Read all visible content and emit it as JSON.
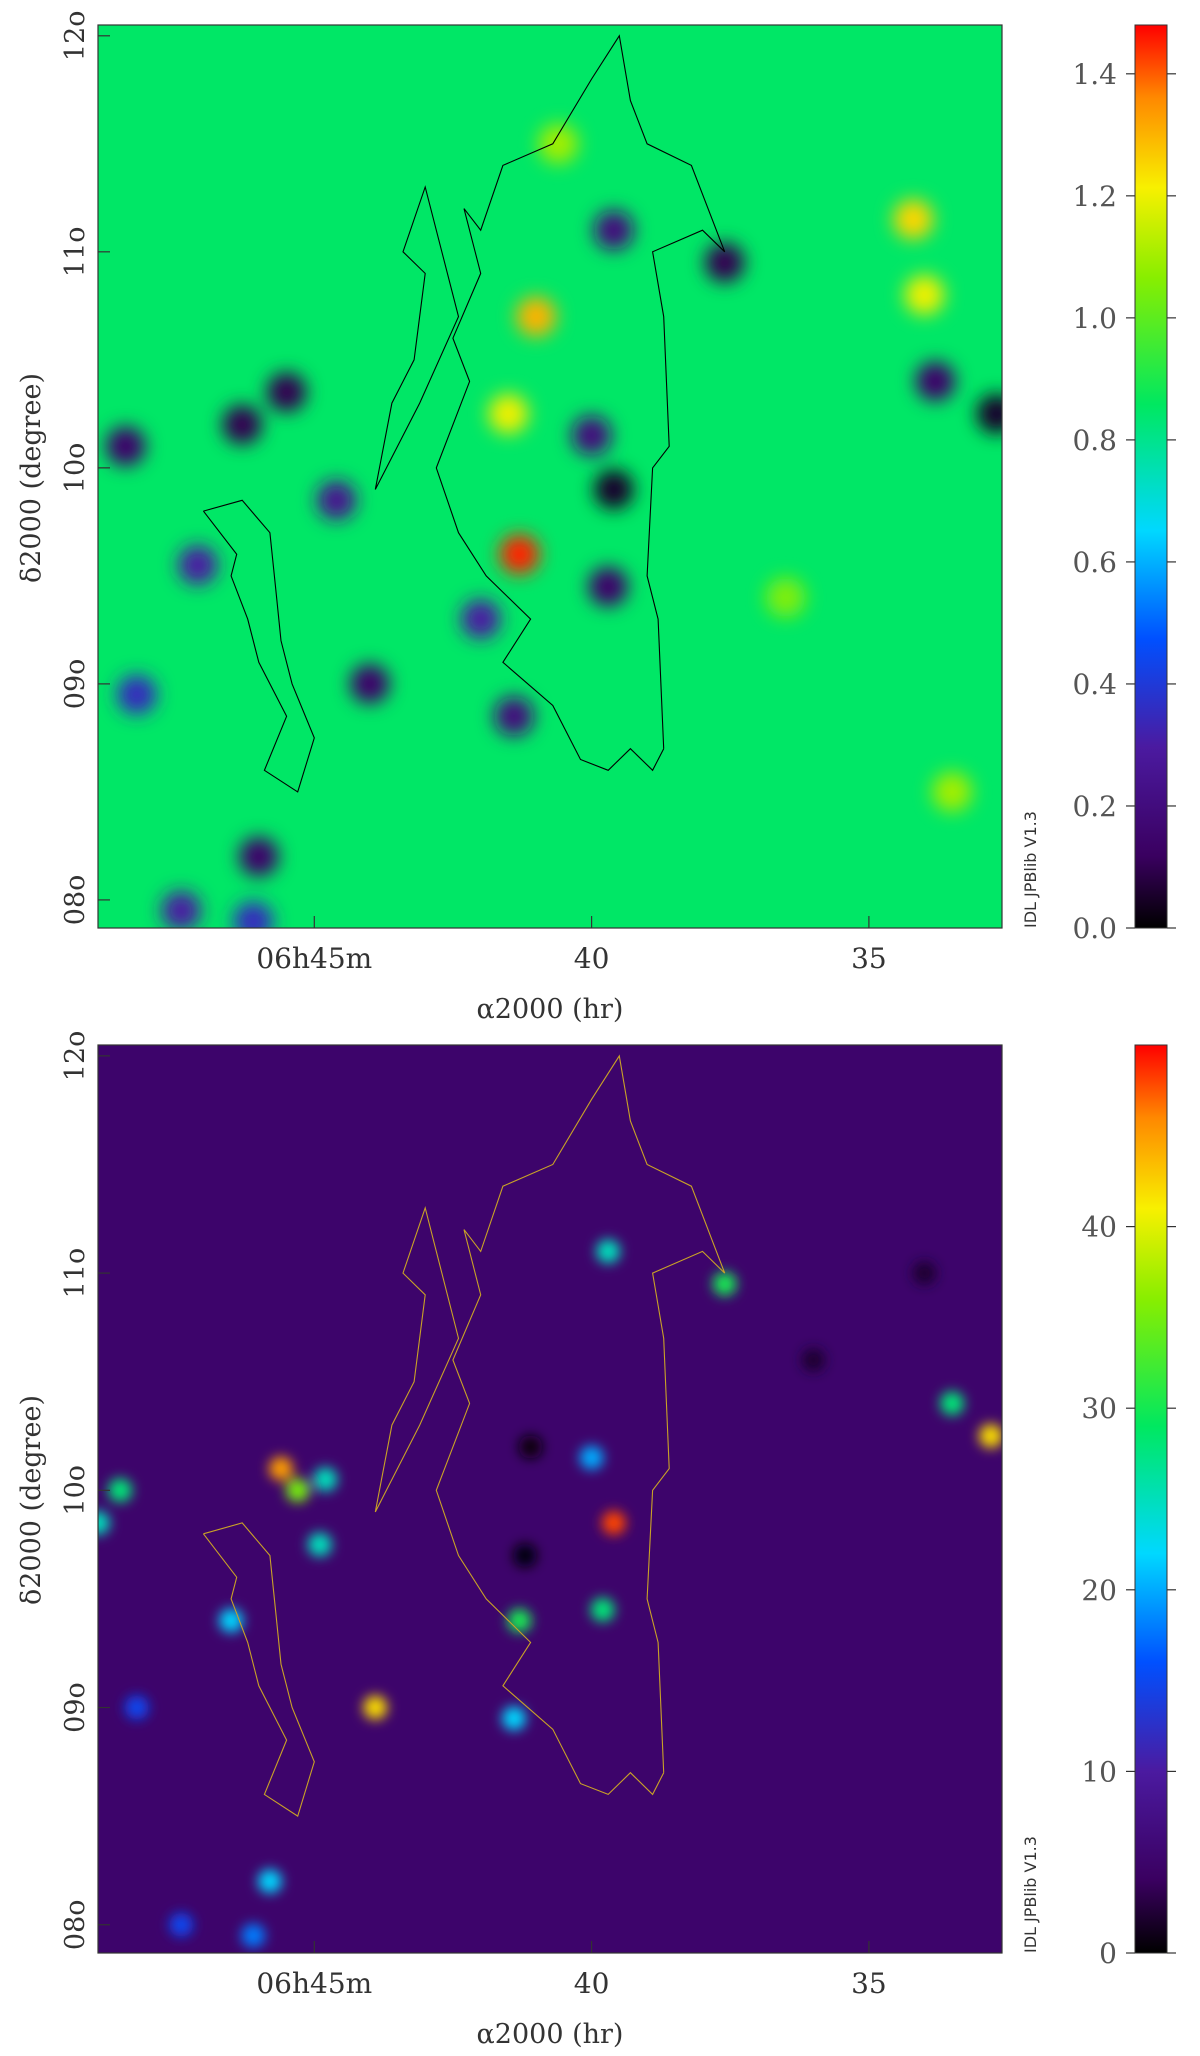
{
  "chart_data": [
    {
      "type": "heatmap",
      "title": "",
      "xlabel": "α2000 (hr)",
      "ylabel": "δ2000 (degree)",
      "x_ticks": [
        {
          "value": 45,
          "label": "06h45m"
        },
        {
          "value": 40,
          "label": "40"
        },
        {
          "value": 35,
          "label": "35"
        }
      ],
      "y_ticks": [
        {
          "value": 8,
          "label": "08o"
        },
        {
          "value": 9,
          "label": "09o"
        },
        {
          "value": 10,
          "label": "10o"
        },
        {
          "value": 11,
          "label": "11o"
        },
        {
          "value": 12,
          "label": "12o"
        }
      ],
      "xlim_minutes": [
        48.9,
        32.6
      ],
      "ylim_deg": [
        7.87,
        12.05
      ],
      "colorbar": {
        "colormap": "rainbow (black-purple-blue-cyan-green-yellow-red)",
        "range": [
          0.0,
          1.48
        ],
        "ticks": [
          "0.0",
          "0.2",
          "0.4",
          "0.6",
          "0.8",
          "1.0",
          "1.2",
          "1.4"
        ],
        "tick_values": [
          0.0,
          0.2,
          0.4,
          0.6,
          0.8,
          1.0,
          1.2,
          1.4
        ]
      },
      "background_level": 0.85,
      "features": [
        {
          "ra": 41.3,
          "dec": 9.6,
          "level": 1.45
        },
        {
          "ra": 41.0,
          "dec": 10.7,
          "level": 1.3
        },
        {
          "ra": 41.5,
          "dec": 10.25,
          "level": 1.2
        },
        {
          "ra": 40.6,
          "dec": 11.5,
          "level": 1.1
        },
        {
          "ra": 34.2,
          "dec": 11.15,
          "level": 1.25
        },
        {
          "ra": 34.0,
          "dec": 10.8,
          "level": 1.2
        },
        {
          "ra": 36.5,
          "dec": 9.4,
          "level": 1.05
        },
        {
          "ra": 33.5,
          "dec": 8.5,
          "level": 1.1
        },
        {
          "ra": 46.3,
          "dec": 10.2,
          "level": 0.1
        },
        {
          "ra": 45.5,
          "dec": 10.35,
          "level": 0.1
        },
        {
          "ra": 44.6,
          "dec": 9.85,
          "level": 0.25
        },
        {
          "ra": 47.1,
          "dec": 9.55,
          "level": 0.3
        },
        {
          "ra": 48.4,
          "dec": 10.1,
          "level": 0.15
        },
        {
          "ra": 44.0,
          "dec": 9.0,
          "level": 0.15
        },
        {
          "ra": 39.6,
          "dec": 9.9,
          "level": 0.05
        },
        {
          "ra": 39.7,
          "dec": 9.45,
          "level": 0.15
        },
        {
          "ra": 40.0,
          "dec": 10.15,
          "level": 0.2
        },
        {
          "ra": 39.6,
          "dec": 11.1,
          "level": 0.2
        },
        {
          "ra": 37.6,
          "dec": 10.95,
          "level": 0.1
        },
        {
          "ra": 33.8,
          "dec": 10.4,
          "level": 0.15
        },
        {
          "ra": 32.7,
          "dec": 10.25,
          "level": 0.05
        },
        {
          "ra": 42.0,
          "dec": 9.3,
          "level": 0.3
        },
        {
          "ra": 41.4,
          "dec": 8.85,
          "level": 0.2
        },
        {
          "ra": 46.0,
          "dec": 8.2,
          "level": 0.15
        },
        {
          "ra": 47.4,
          "dec": 7.95,
          "level": 0.3
        },
        {
          "ra": 46.1,
          "dec": 7.9,
          "level": 0.35
        },
        {
          "ra": 48.2,
          "dec": 8.95,
          "level": 0.35
        }
      ],
      "contour": {
        "color": "#000000",
        "outer_boundary": [
          [
            38.7,
            8.7
          ],
          [
            38.8,
            9.3
          ],
          [
            39.0,
            9.5
          ],
          [
            38.9,
            10.0
          ],
          [
            38.6,
            10.1
          ],
          [
            38.7,
            10.7
          ],
          [
            38.9,
            11.0
          ],
          [
            38.0,
            11.1
          ],
          [
            37.6,
            11.0
          ],
          [
            38.2,
            11.4
          ],
          [
            39.0,
            11.5
          ],
          [
            39.3,
            11.7
          ],
          [
            39.5,
            12.0
          ],
          [
            40.0,
            11.8
          ],
          [
            40.7,
            11.5
          ],
          [
            41.6,
            11.4
          ],
          [
            42.0,
            11.1
          ],
          [
            42.3,
            11.2
          ],
          [
            42.0,
            10.9
          ],
          [
            42.5,
            10.6
          ],
          [
            42.2,
            10.4
          ],
          [
            42.8,
            10.0
          ],
          [
            42.4,
            9.7
          ],
          [
            41.9,
            9.5
          ],
          [
            41.1,
            9.3
          ],
          [
            41.6,
            9.1
          ],
          [
            40.7,
            8.9
          ],
          [
            40.2,
            8.65
          ],
          [
            39.7,
            8.6
          ],
          [
            39.3,
            8.7
          ],
          [
            38.9,
            8.6
          ],
          [
            38.7,
            8.7
          ]
        ],
        "west_boundary": [
          [
            47.0,
            9.8
          ],
          [
            46.3,
            9.85
          ],
          [
            45.8,
            9.7
          ],
          [
            45.7,
            9.45
          ],
          [
            45.6,
            9.2
          ],
          [
            45.4,
            9.0
          ],
          [
            45.0,
            8.75
          ],
          [
            45.3,
            8.5
          ],
          [
            45.9,
            8.6
          ],
          [
            45.5,
            8.85
          ],
          [
            46.0,
            9.1
          ],
          [
            46.2,
            9.3
          ],
          [
            46.5,
            9.5
          ],
          [
            46.4,
            9.6
          ],
          [
            47.0,
            9.8
          ]
        ],
        "stray": [
          [
            43.9,
            9.9
          ],
          [
            43.6,
            10.3
          ],
          [
            43.2,
            10.5
          ],
          [
            43.0,
            10.9
          ],
          [
            43.4,
            11.0
          ],
          [
            43.0,
            11.3
          ],
          [
            42.4,
            10.7
          ],
          [
            43.1,
            10.3
          ],
          [
            43.9,
            9.9
          ]
        ]
      }
    },
    {
      "type": "heatmap",
      "title": "",
      "xlabel": "α2000 (hr)",
      "ylabel": "δ2000 (degree)",
      "x_ticks": [
        {
          "value": 45,
          "label": "06h45m"
        },
        {
          "value": 40,
          "label": "40"
        },
        {
          "value": 35,
          "label": "35"
        }
      ],
      "y_ticks": [
        {
          "value": 8,
          "label": "08o"
        },
        {
          "value": 9,
          "label": "09o"
        },
        {
          "value": 10,
          "label": "10o"
        },
        {
          "value": 11,
          "label": "11o"
        },
        {
          "value": 12,
          "label": "12o"
        }
      ],
      "xlim_minutes": [
        48.9,
        32.6
      ],
      "ylim_deg": [
        7.87,
        12.05
      ],
      "colorbar": {
        "colormap": "rainbow (black-purple-blue-cyan-green-yellow-red)",
        "range": [
          0,
          50
        ],
        "ticks": [
          "0",
          "10",
          "20",
          "30",
          "40"
        ],
        "tick_values": [
          0,
          10,
          20,
          30,
          40
        ]
      },
      "background_level": 5,
      "features": [
        {
          "ra": 45.6,
          "dec": 10.1,
          "level": 45
        },
        {
          "ra": 45.3,
          "dec": 10.0,
          "level": 35
        },
        {
          "ra": 44.8,
          "dec": 10.05,
          "level": 25
        },
        {
          "ra": 44.9,
          "dec": 9.75,
          "level": 25
        },
        {
          "ra": 43.9,
          "dec": 9.0,
          "level": 42
        },
        {
          "ra": 48.5,
          "dec": 10.0,
          "level": 28
        },
        {
          "ra": 48.9,
          "dec": 9.85,
          "level": 25
        },
        {
          "ra": 46.5,
          "dec": 9.4,
          "level": 22
        },
        {
          "ra": 39.6,
          "dec": 9.85,
          "level": 48
        },
        {
          "ra": 39.8,
          "dec": 9.45,
          "level": 28
        },
        {
          "ra": 40.0,
          "dec": 10.15,
          "level": 20
        },
        {
          "ra": 39.7,
          "dec": 11.1,
          "level": 25
        },
        {
          "ra": 37.6,
          "dec": 10.95,
          "level": 30
        },
        {
          "ra": 41.3,
          "dec": 9.4,
          "level": 30
        },
        {
          "ra": 41.4,
          "dec": 8.95,
          "level": 22
        },
        {
          "ra": 33.5,
          "dec": 10.4,
          "level": 28
        },
        {
          "ra": 32.8,
          "dec": 10.25,
          "level": 42
        },
        {
          "ra": 45.8,
          "dec": 8.2,
          "level": 22
        },
        {
          "ra": 46.1,
          "dec": 7.95,
          "level": 18
        },
        {
          "ra": 47.4,
          "dec": 8.0,
          "level": 15
        },
        {
          "ra": 48.2,
          "dec": 9.0,
          "level": 15
        },
        {
          "ra": 41.1,
          "dec": 10.2,
          "level": 0.5
        },
        {
          "ra": 41.2,
          "dec": 9.7,
          "level": 0.3
        },
        {
          "ra": 36.0,
          "dec": 10.6,
          "level": 2
        },
        {
          "ra": 34.0,
          "dec": 11.0,
          "level": 2
        }
      ],
      "contour": {
        "color": "#c9a227",
        "outer_boundary": [
          [
            38.7,
            8.7
          ],
          [
            38.8,
            9.3
          ],
          [
            39.0,
            9.5
          ],
          [
            38.9,
            10.0
          ],
          [
            38.6,
            10.1
          ],
          [
            38.7,
            10.7
          ],
          [
            38.9,
            11.0
          ],
          [
            38.0,
            11.1
          ],
          [
            37.6,
            11.0
          ],
          [
            38.2,
            11.4
          ],
          [
            39.0,
            11.5
          ],
          [
            39.3,
            11.7
          ],
          [
            39.5,
            12.0
          ],
          [
            40.0,
            11.8
          ],
          [
            40.7,
            11.5
          ],
          [
            41.6,
            11.4
          ],
          [
            42.0,
            11.1
          ],
          [
            42.3,
            11.2
          ],
          [
            42.0,
            10.9
          ],
          [
            42.5,
            10.6
          ],
          [
            42.2,
            10.4
          ],
          [
            42.8,
            10.0
          ],
          [
            42.4,
            9.7
          ],
          [
            41.9,
            9.5
          ],
          [
            41.1,
            9.3
          ],
          [
            41.6,
            9.1
          ],
          [
            40.7,
            8.9
          ],
          [
            40.2,
            8.65
          ],
          [
            39.7,
            8.6
          ],
          [
            39.3,
            8.7
          ],
          [
            38.9,
            8.6
          ],
          [
            38.7,
            8.7
          ]
        ],
        "west_boundary": [
          [
            47.0,
            9.8
          ],
          [
            46.3,
            9.85
          ],
          [
            45.8,
            9.7
          ],
          [
            45.7,
            9.45
          ],
          [
            45.6,
            9.2
          ],
          [
            45.4,
            9.0
          ],
          [
            45.0,
            8.75
          ],
          [
            45.3,
            8.5
          ],
          [
            45.9,
            8.6
          ],
          [
            45.5,
            8.85
          ],
          [
            46.0,
            9.1
          ],
          [
            46.2,
            9.3
          ],
          [
            46.5,
            9.5
          ],
          [
            46.4,
            9.6
          ],
          [
            47.0,
            9.8
          ]
        ],
        "stray": [
          [
            43.9,
            9.9
          ],
          [
            43.6,
            10.3
          ],
          [
            43.2,
            10.5
          ],
          [
            43.0,
            10.9
          ],
          [
            43.4,
            11.0
          ],
          [
            43.0,
            11.3
          ],
          [
            42.4,
            10.7
          ],
          [
            43.1,
            10.3
          ],
          [
            43.9,
            9.9
          ]
        ]
      }
    }
  ],
  "credit_text": "IDL JPBlib V1.3"
}
